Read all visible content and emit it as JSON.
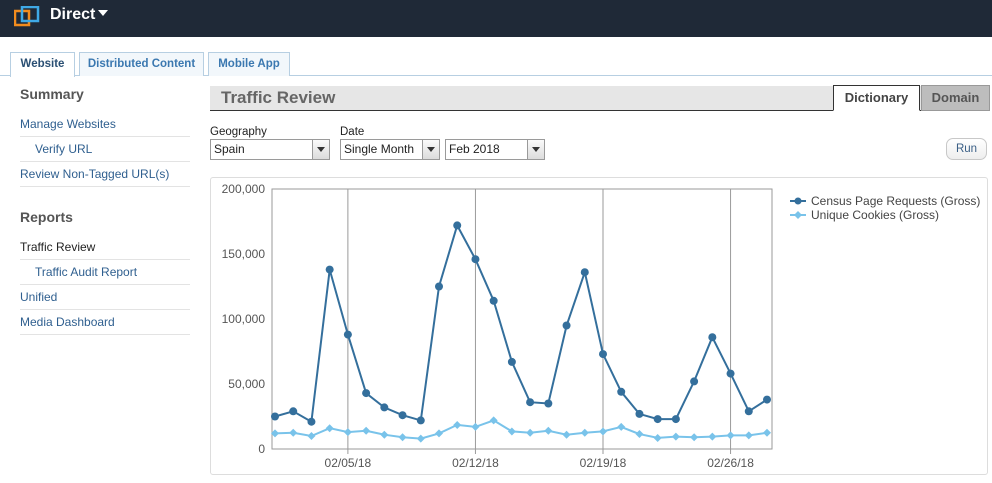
{
  "app": {
    "name": "Direct"
  },
  "colors": {
    "series1": "#346f9c",
    "series2": "#79c3ea",
    "topbar": "#1f2937"
  },
  "tabs": [
    {
      "label": "Website",
      "active": true
    },
    {
      "label": "Distributed Content",
      "active": false
    },
    {
      "label": "Mobile App",
      "active": false
    }
  ],
  "sidebar": {
    "summary_heading": "Summary",
    "summary_items": [
      "Manage Websites",
      "Verify URL",
      "Review Non-Tagged URL(s)"
    ],
    "reports_heading": "Reports",
    "reports_items": [
      "Traffic Review",
      "Traffic Audit Report",
      "Unified",
      "Media Dashboard"
    ]
  },
  "page": {
    "title": "Traffic Review",
    "view_tabs": [
      "Dictionary",
      "Domain"
    ],
    "active_view": "Dictionary"
  },
  "filters": {
    "geography_label": "Geography",
    "geography_value": "Spain",
    "date_label": "Date",
    "date_mode_value": "Single Month",
    "month_value": "Feb 2018",
    "run_label": "Run"
  },
  "chart_data": {
    "type": "line",
    "x": [
      "2018-02-01",
      "2018-02-02",
      "2018-02-03",
      "2018-02-04",
      "2018-02-05",
      "2018-02-06",
      "2018-02-07",
      "2018-02-08",
      "2018-02-09",
      "2018-02-10",
      "2018-02-11",
      "2018-02-12",
      "2018-02-13",
      "2018-02-14",
      "2018-02-15",
      "2018-02-16",
      "2018-02-17",
      "2018-02-18",
      "2018-02-19",
      "2018-02-20",
      "2018-02-21",
      "2018-02-22",
      "2018-02-23",
      "2018-02-24",
      "2018-02-25",
      "2018-02-26",
      "2018-02-27",
      "2018-02-28"
    ],
    "xtick_labels": [
      "02/05/18",
      "02/12/18",
      "02/19/18",
      "02/26/18"
    ],
    "ytick_labels": [
      "0",
      "50,000",
      "100,000",
      "150,000",
      "200,000"
    ],
    "ylim": [
      0,
      200000
    ],
    "legend_position": "top-right",
    "series": [
      {
        "name": "Census Page Requests (Gross)",
        "marker": "circle",
        "values": [
          25000,
          29000,
          21000,
          138000,
          88000,
          43000,
          32000,
          26000,
          22000,
          125000,
          172000,
          146000,
          114000,
          67000,
          36000,
          35000,
          95000,
          136000,
          73000,
          44000,
          27000,
          23000,
          23000,
          52000,
          86000,
          58000,
          29000,
          38000
        ]
      },
      {
        "name": "Unique Cookies (Gross)",
        "marker": "diamond",
        "values": [
          12000,
          12500,
          10000,
          16000,
          13000,
          14000,
          11000,
          9000,
          8000,
          12000,
          18500,
          17000,
          22000,
          13500,
          12500,
          14000,
          11000,
          12500,
          13500,
          17000,
          11500,
          8500,
          9500,
          9000,
          9500,
          10500,
          10500,
          12500
        ]
      }
    ]
  }
}
